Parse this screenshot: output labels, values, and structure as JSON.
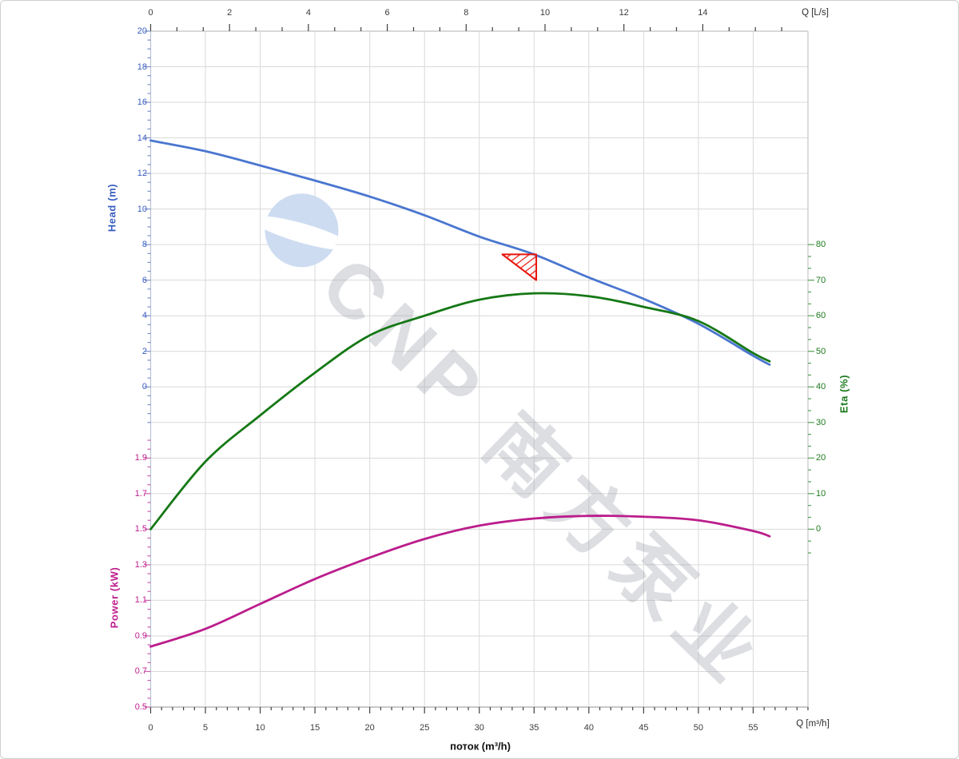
{
  "watermark": {
    "text": "CNP 南方泵业",
    "logo": "cnp-circle-logo"
  },
  "colors": {
    "head_curve": "#4a76d0",
    "eta_curve": "#157815",
    "power_curve": "#bb1d8c",
    "marker": "#e8150c",
    "grid": "#d9d9d9",
    "head_axis": "#3a5fc0",
    "power_axis": "#bf1d8d",
    "eta_axis": "#1d7a1d"
  },
  "chart_data": {
    "type": "line",
    "grid": {
      "visible": true,
      "color": "#d9d9d9"
    },
    "x_axis_bottom": {
      "title": "Q [m³/h]",
      "label": "поток (m³/h)",
      "min": 0,
      "max": 60,
      "major_tick_step": 5,
      "minor_tick_step": 1,
      "tick_labels": [
        0,
        5,
        10,
        15,
        20,
        25,
        30,
        35,
        40,
        45,
        50,
        55
      ]
    },
    "x_axis_top": {
      "title": "Q [L/s]",
      "min": 0,
      "max": 16.67,
      "major_tick_step": 2,
      "minor_ticks_per_major": 3,
      "tick_labels": [
        0,
        2,
        4,
        6,
        8,
        10,
        12,
        14
      ]
    },
    "y_axis_head": {
      "title": "Head (m)",
      "min": 0,
      "max": 20,
      "major_tick_step": 2,
      "minor_tick_step": 0.5,
      "tick_labels": [
        20,
        18,
        16,
        14,
        12,
        10,
        8,
        6,
        4,
        2,
        0
      ]
    },
    "y_axis_power": {
      "title": "Power (kW)",
      "min": 0.5,
      "max": 1.9,
      "major_tick_step": 0.2,
      "minor_tick_step": 0.05,
      "tick_labels": [
        "1.9",
        "1.7",
        "1.5",
        "1.3",
        "1.1",
        "0.9",
        "0.7",
        "0.5"
      ]
    },
    "y_axis_eta": {
      "title": "Eta (%)",
      "min": 0,
      "max": 80,
      "major_tick_step": 10,
      "minor_ticks_per_major": 3,
      "tick_labels": [
        80,
        70,
        60,
        50,
        40,
        30,
        20,
        10,
        0
      ]
    },
    "series": [
      {
        "name": "head",
        "axis": "head",
        "unit": "m",
        "color": "#4a76d0",
        "points": [
          [
            0,
            13.85
          ],
          [
            5,
            13.25
          ],
          [
            10,
            12.45
          ],
          [
            15,
            11.6
          ],
          [
            20,
            10.7
          ],
          [
            25,
            9.65
          ],
          [
            30,
            8.45
          ],
          [
            35,
            7.45
          ],
          [
            40,
            6.15
          ],
          [
            45,
            4.95
          ],
          [
            50,
            3.55
          ],
          [
            55,
            1.75
          ],
          [
            56.5,
            1.25
          ]
        ]
      },
      {
        "name": "eta",
        "axis": "eta",
        "unit": "%",
        "color": "#157815",
        "points": [
          [
            0,
            0
          ],
          [
            5,
            19
          ],
          [
            10,
            32
          ],
          [
            15,
            44
          ],
          [
            20,
            54.5
          ],
          [
            25,
            60
          ],
          [
            30,
            64.5
          ],
          [
            35,
            66.3
          ],
          [
            40,
            65.5
          ],
          [
            45,
            62.5
          ],
          [
            50,
            58.5
          ],
          [
            55,
            49.5
          ],
          [
            56.5,
            47.2
          ]
        ]
      },
      {
        "name": "power",
        "axis": "power",
        "unit": "kW",
        "color": "#bb1d8c",
        "points": [
          [
            0,
            0.84
          ],
          [
            5,
            0.94
          ],
          [
            10,
            1.08
          ],
          [
            15,
            1.22
          ],
          [
            20,
            1.34
          ],
          [
            25,
            1.445
          ],
          [
            30,
            1.52
          ],
          [
            35,
            1.56
          ],
          [
            40,
            1.575
          ],
          [
            45,
            1.57
          ],
          [
            50,
            1.55
          ],
          [
            55,
            1.49
          ],
          [
            56.5,
            1.46
          ]
        ]
      }
    ],
    "duty_point_marker": {
      "shape": "hatched-right-triangle",
      "color": "#e8150c",
      "q": 35.2,
      "head": 7.45,
      "width_q": 3.1,
      "height_head": 1.45
    }
  }
}
